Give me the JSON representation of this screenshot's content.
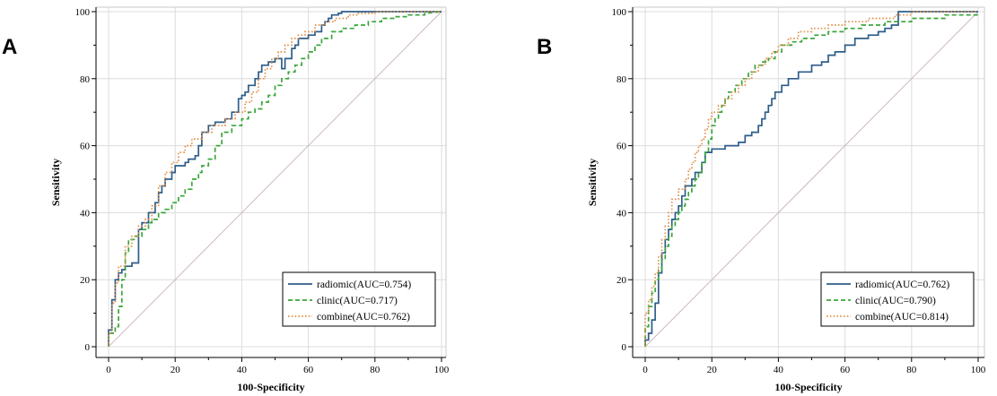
{
  "figure": {
    "panel_labels": [
      "A",
      "B"
    ]
  },
  "chart_data": [
    {
      "type": "line",
      "panel": "A",
      "xlabel": "100-Specificity",
      "ylabel": "Sensitivity",
      "xlim": [
        0,
        100
      ],
      "ylim": [
        0,
        100
      ],
      "xticks": [
        0,
        20,
        40,
        60,
        80,
        100
      ],
      "yticks": [
        0,
        20,
        40,
        60,
        80,
        100
      ],
      "reference_line": {
        "from": [
          0,
          0
        ],
        "to": [
          100,
          100
        ],
        "color": "#cbb8c0"
      },
      "legend_position": "bottom-right",
      "series": [
        {
          "name": "radiomic(AUC=0.754)",
          "color": "#2e5d8a",
          "dash": "solid",
          "x": [
            0,
            0,
            1,
            1,
            2,
            2,
            3,
            3,
            4,
            4,
            5,
            5,
            7,
            7,
            9,
            9,
            10,
            10,
            12,
            12,
            14,
            14,
            15,
            15,
            16,
            16,
            17,
            17,
            19,
            19,
            20,
            20,
            23,
            23,
            24,
            24,
            26,
            26,
            27,
            27,
            28,
            28,
            30,
            30,
            32,
            32,
            35,
            35,
            37,
            37,
            39,
            39,
            40,
            40,
            41,
            41,
            42,
            42,
            44,
            44,
            45,
            45,
            46,
            46,
            48,
            48,
            50,
            50,
            52,
            52,
            53,
            53,
            55,
            55,
            56,
            56,
            57,
            57,
            60,
            60,
            62,
            62,
            64,
            64,
            65,
            65,
            66,
            66,
            67,
            67,
            69,
            69,
            70,
            70,
            72,
            72,
            80,
            80,
            100
          ],
          "y": [
            0,
            5,
            5,
            14,
            14,
            20,
            20,
            22,
            22,
            23,
            23,
            24,
            24,
            25,
            25,
            35,
            35,
            37,
            37,
            40,
            40,
            43,
            43,
            46,
            46,
            48,
            48,
            50,
            50,
            52,
            52,
            54,
            54,
            55,
            55,
            56,
            56,
            57,
            57,
            60,
            60,
            64,
            64,
            66,
            66,
            67,
            67,
            68,
            68,
            70,
            70,
            74,
            74,
            75,
            75,
            76,
            76,
            78,
            78,
            80,
            80,
            82,
            82,
            84,
            84,
            85,
            85,
            86,
            86,
            83,
            83,
            86,
            86,
            89,
            89,
            90,
            90,
            92,
            92,
            93,
            93,
            94,
            94,
            96,
            96,
            97,
            97,
            98,
            98,
            99,
            99,
            99.5,
            99.5,
            100,
            100,
            100,
            100,
            100,
            100
          ]
        },
        {
          "name": "clinic(AUC=0.717)",
          "color": "#3aa63a",
          "dash": "dashed",
          "x": [
            0,
            0,
            2,
            2,
            3,
            3,
            4,
            4,
            5,
            5,
            6,
            6,
            8,
            8,
            10,
            10,
            12,
            12,
            13,
            13,
            15,
            15,
            17,
            17,
            19,
            19,
            21,
            21,
            23,
            23,
            25,
            25,
            27,
            27,
            28,
            28,
            30,
            30,
            32,
            32,
            34,
            34,
            37,
            37,
            40,
            40,
            42,
            42,
            44,
            44,
            46,
            46,
            48,
            48,
            50,
            50,
            52,
            52,
            54,
            54,
            56,
            56,
            58,
            58,
            60,
            60,
            62,
            62,
            64,
            64,
            67,
            67,
            70,
            70,
            74,
            74,
            78,
            78,
            82,
            82,
            86,
            86,
            90,
            90,
            95,
            95,
            100
          ],
          "y": [
            0,
            4,
            4,
            6,
            6,
            12,
            12,
            20,
            20,
            28,
            28,
            32,
            32,
            33,
            33,
            35,
            35,
            37,
            37,
            38,
            38,
            40,
            40,
            41,
            41,
            43,
            43,
            45,
            45,
            47,
            47,
            50,
            50,
            52,
            52,
            54,
            54,
            56,
            56,
            60,
            60,
            64,
            64,
            66,
            66,
            68,
            68,
            70,
            70,
            71,
            71,
            73,
            73,
            75,
            75,
            78,
            78,
            80,
            80,
            82,
            82,
            84,
            84,
            86,
            86,
            88,
            88,
            90,
            90,
            92,
            92,
            94,
            94,
            95,
            95,
            96,
            96,
            97,
            97,
            98,
            98,
            98.5,
            98.5,
            99,
            99,
            99.5,
            100
          ]
        },
        {
          "name": "combine(AUC=0.762)",
          "color": "#e0904a",
          "dash": "dotted",
          "x": [
            0,
            0,
            1,
            1,
            2,
            2,
            3,
            3,
            5,
            5,
            7,
            7,
            9,
            9,
            11,
            11,
            13,
            13,
            15,
            15,
            17,
            17,
            19,
            19,
            21,
            21,
            23,
            23,
            25,
            25,
            28,
            28,
            31,
            31,
            35,
            35,
            38,
            38,
            41,
            41,
            43,
            43,
            45,
            45,
            47,
            47,
            49,
            49,
            51,
            51,
            53,
            53,
            55,
            55,
            57,
            57,
            59,
            59,
            62,
            62,
            65,
            65,
            68,
            68,
            72,
            72,
            75,
            75,
            80,
            80,
            100
          ],
          "y": [
            0,
            4,
            4,
            13,
            13,
            19,
            19,
            24,
            24,
            30,
            30,
            33,
            33,
            36,
            36,
            38,
            38,
            42,
            42,
            48,
            48,
            52,
            52,
            55,
            55,
            58,
            58,
            60,
            60,
            62,
            62,
            64,
            64,
            66,
            66,
            68,
            68,
            70,
            70,
            73,
            73,
            76,
            76,
            80,
            80,
            83,
            83,
            86,
            86,
            88,
            88,
            90,
            90,
            92,
            92,
            93,
            93,
            94,
            94,
            96,
            96,
            97,
            97,
            98,
            98,
            99,
            99,
            99.5,
            99.5,
            100,
            100
          ]
        }
      ]
    },
    {
      "type": "line",
      "panel": "B",
      "xlabel": "100-Specificity",
      "ylabel": "Sensitivity",
      "xlim": [
        0,
        100
      ],
      "ylim": [
        0,
        100
      ],
      "xticks": [
        0,
        20,
        40,
        60,
        80,
        100
      ],
      "yticks": [
        0,
        20,
        40,
        60,
        80,
        100
      ],
      "reference_line": {
        "from": [
          0,
          0
        ],
        "to": [
          100,
          100
        ],
        "color": "#cbb8c0"
      },
      "legend_position": "bottom-right",
      "series": [
        {
          "name": "radiomic(AUC=0.762)",
          "color": "#2e5d8a",
          "dash": "solid",
          "x": [
            0,
            0,
            1,
            1,
            2,
            2,
            3,
            3,
            4,
            4,
            5,
            5,
            6,
            6,
            7,
            7,
            8,
            8,
            9,
            9,
            10,
            10,
            11,
            11,
            12,
            12,
            14,
            14,
            15,
            15,
            17,
            17,
            18,
            18,
            20,
            20,
            24,
            24,
            28,
            28,
            30,
            30,
            32,
            32,
            34,
            34,
            35,
            35,
            36,
            36,
            37,
            37,
            38,
            38,
            39,
            39,
            41,
            41,
            43,
            43,
            46,
            46,
            50,
            50,
            53,
            53,
            55,
            55,
            57,
            57,
            60,
            60,
            63,
            63,
            67,
            67,
            70,
            70,
            72,
            72,
            74,
            74,
            76,
            76,
            80,
            80,
            100
          ],
          "y": [
            0,
            2,
            2,
            4,
            4,
            8,
            8,
            13,
            13,
            22,
            22,
            28,
            28,
            32,
            32,
            35,
            35,
            38,
            38,
            40,
            40,
            42,
            42,
            45,
            45,
            48,
            48,
            50,
            50,
            52,
            52,
            55,
            55,
            58,
            58,
            59,
            59,
            60,
            60,
            61,
            61,
            63,
            63,
            64,
            64,
            66,
            66,
            68,
            68,
            70,
            70,
            72,
            72,
            74,
            74,
            76,
            76,
            78,
            78,
            80,
            80,
            82,
            82,
            84,
            84,
            85,
            85,
            87,
            87,
            88,
            88,
            90,
            90,
            92,
            92,
            93,
            93,
            94,
            94,
            95,
            95,
            96,
            96,
            100,
            100,
            100,
            100
          ]
        },
        {
          "name": "clinic(AUC=0.790)",
          "color": "#3aa63a",
          "dash": "dashed",
          "x": [
            0,
            0,
            1,
            1,
            2,
            2,
            3,
            3,
            4,
            4,
            5,
            5,
            6,
            6,
            7,
            7,
            8,
            8,
            9,
            9,
            10,
            10,
            11,
            11,
            12,
            12,
            13,
            13,
            14,
            14,
            15,
            15,
            16,
            16,
            17,
            17,
            18,
            18,
            19,
            19,
            20,
            20,
            21,
            21,
            22,
            22,
            23,
            23,
            24,
            24,
            25,
            25,
            27,
            27,
            29,
            29,
            31,
            31,
            33,
            33,
            35,
            35,
            37,
            37,
            39,
            39,
            41,
            41,
            44,
            44,
            47,
            47,
            51,
            51,
            55,
            55,
            60,
            60,
            65,
            65,
            72,
            72,
            80,
            80,
            90,
            90,
            100
          ],
          "y": [
            0,
            6,
            6,
            12,
            12,
            16,
            16,
            20,
            20,
            23,
            23,
            26,
            26,
            30,
            30,
            33,
            33,
            36,
            36,
            38,
            38,
            40,
            40,
            42,
            42,
            44,
            44,
            46,
            46,
            48,
            48,
            50,
            50,
            52,
            52,
            55,
            55,
            58,
            58,
            62,
            62,
            66,
            66,
            68,
            68,
            70,
            70,
            72,
            72,
            74,
            74,
            76,
            76,
            78,
            78,
            80,
            80,
            82,
            82,
            84,
            84,
            85,
            85,
            86,
            86,
            88,
            88,
            90,
            90,
            91,
            91,
            92,
            92,
            93,
            93,
            94,
            94,
            95,
            95,
            96,
            96,
            97,
            97,
            98,
            98,
            99,
            99
          ]
        },
        {
          "name": "combine(AUC=0.814)",
          "color": "#e0904a",
          "dash": "dotted",
          "x": [
            0,
            0,
            1,
            1,
            2,
            2,
            3,
            3,
            4,
            4,
            5,
            5,
            6,
            6,
            7,
            7,
            8,
            8,
            10,
            10,
            12,
            12,
            13,
            13,
            14,
            14,
            15,
            15,
            16,
            16,
            17,
            17,
            18,
            18,
            19,
            19,
            20,
            20,
            22,
            22,
            24,
            24,
            26,
            26,
            28,
            28,
            30,
            30,
            32,
            32,
            34,
            34,
            36,
            36,
            38,
            38,
            40,
            40,
            43,
            43,
            46,
            46,
            50,
            50,
            55,
            55,
            60,
            60,
            67,
            67,
            75,
            75,
            80,
            80,
            100
          ],
          "y": [
            0,
            10,
            10,
            14,
            14,
            18,
            18,
            22,
            22,
            27,
            27,
            32,
            32,
            36,
            36,
            40,
            40,
            44,
            44,
            47,
            47,
            50,
            50,
            53,
            53,
            55,
            55,
            58,
            58,
            60,
            60,
            62,
            62,
            65,
            65,
            68,
            68,
            70,
            70,
            72,
            72,
            74,
            74,
            76,
            76,
            78,
            78,
            80,
            80,
            82,
            82,
            84,
            84,
            86,
            86,
            88,
            88,
            90,
            90,
            92,
            92,
            94,
            94,
            95,
            95,
            96,
            96,
            97,
            97,
            98,
            98,
            99,
            99,
            100,
            100
          ]
        }
      ]
    }
  ]
}
